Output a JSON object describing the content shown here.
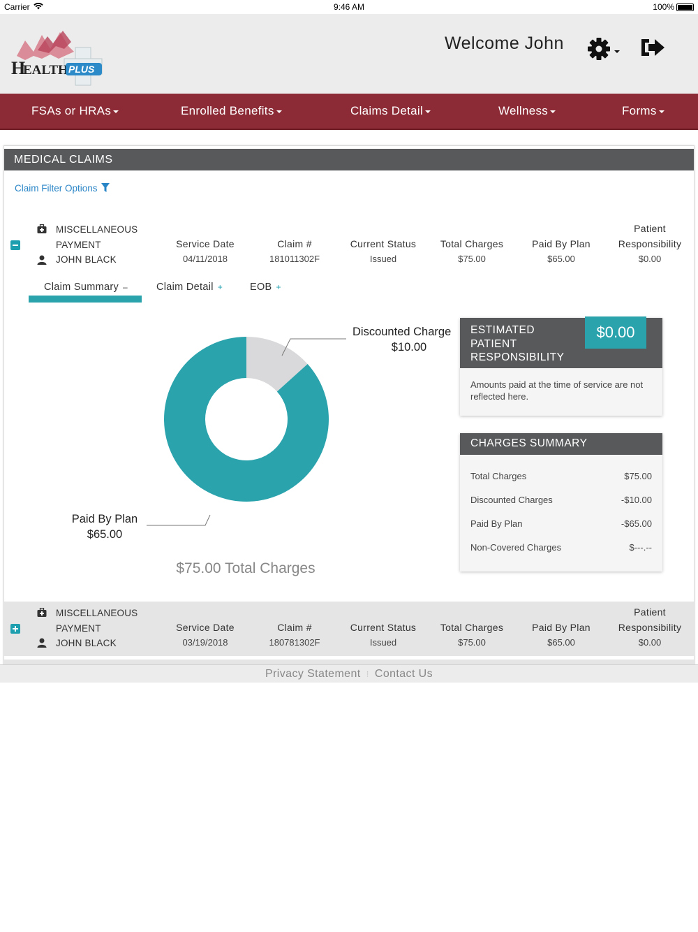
{
  "status_bar": {
    "carrier": "Carrier",
    "time": "9:46 AM",
    "battery": "100%"
  },
  "header": {
    "logo_text": "HEALTH PLUS",
    "welcome": "Welcome John",
    "settings_icon": "gear-icon",
    "logout_icon": "sign-out-icon"
  },
  "nav": {
    "items": [
      {
        "label": "FSAs or HRAs"
      },
      {
        "label": "Enrolled Benefits"
      },
      {
        "label": "Claims Detail"
      },
      {
        "label": "Wellness"
      },
      {
        "label": "Forms"
      }
    ]
  },
  "panel": {
    "title": "MEDICAL CLAIMS",
    "filter_label": "Claim Filter Options"
  },
  "columns": {
    "service_date": "Service Date",
    "claim_no": "Claim #",
    "current_status": "Current Status",
    "total_charges": "Total Charges",
    "paid_by_plan": "Paid By Plan",
    "patient_resp_line1": "Patient",
    "patient_resp_line2": "Responsibility"
  },
  "claims": [
    {
      "type_line1": "MISCELLANEOUS",
      "type_line2": "PAYMENT",
      "patient": "JOHN BLACK",
      "service_date": "04/11/2018",
      "claim_no": "181011302F",
      "status": "Issued",
      "total_charges": "$75.00",
      "paid_by_plan": "$65.00",
      "patient_responsibility": "$0.00",
      "expanded": true
    },
    {
      "type_line1": "MISCELLANEOUS",
      "type_line2": "PAYMENT",
      "patient": "JOHN BLACK",
      "service_date": "03/19/2018",
      "claim_no": "180781302F",
      "status": "Issued",
      "total_charges": "$75.00",
      "paid_by_plan": "$65.00",
      "patient_responsibility": "$0.00",
      "expanded": false
    }
  ],
  "tabs": {
    "summary": "Claim Summary",
    "detail": "Claim Detail",
    "eob": "EOB"
  },
  "chart_data": {
    "type": "pie",
    "categories": [
      "Paid By Plan",
      "Discounted Charges"
    ],
    "values": [
      65.0,
      10.0
    ],
    "value_labels": [
      "$65.00",
      "$10.00"
    ],
    "slice_labels": [
      "Paid By Plan",
      "Discounted Charge"
    ],
    "colors": [
      "#2aa3ad",
      "#d9d9db"
    ],
    "donut": true,
    "total_label": "$75.00 Total Charges"
  },
  "estimated": {
    "label": "ESTIMATED PATIENT RESPONSIBILITY",
    "amount": "$0.00",
    "note": "Amounts paid at the time of service are not reflected here."
  },
  "charges_summary": {
    "title": "CHARGES SUMMARY",
    "rows": [
      {
        "label": "Total Charges",
        "amount": "$75.00"
      },
      {
        "label": "Discounted Charges",
        "amount": "-$10.00"
      },
      {
        "label": "Paid By Plan",
        "amount": "-$65.00"
      },
      {
        "label": "Non-Covered Charges",
        "amount": "$---.--"
      }
    ]
  },
  "footer": {
    "privacy": "Privacy Statement",
    "contact": "Contact Us"
  },
  "colors": {
    "brand": "#8c2a35",
    "accent": "#2aa3ad",
    "header_dark": "#58595b",
    "link": "#2a85c7"
  }
}
